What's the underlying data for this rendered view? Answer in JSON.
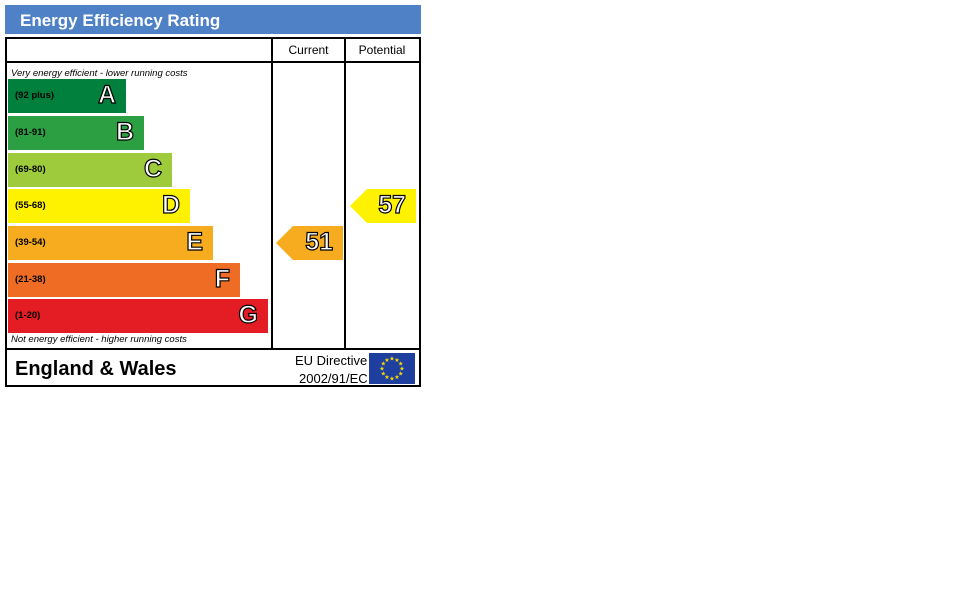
{
  "title": "Energy Efficiency Rating",
  "columns": {
    "current": "Current",
    "potential": "Potential"
  },
  "top_note": "Very energy efficient - lower running costs",
  "bottom_note": "Not energy efficient - higher running costs",
  "footer": {
    "country": "England & Wales",
    "directive_line1": "EU Directive",
    "directive_line2": "2002/91/EC",
    "flag_icon": "eu-flag-icon"
  },
  "chart_data": {
    "type": "bar",
    "title": "Energy Efficiency Rating",
    "bands": [
      {
        "letter": "A",
        "range": "(92 plus)",
        "color": "#007f3d"
      },
      {
        "letter": "B",
        "range": "(81-91)",
        "color": "#2c9f42"
      },
      {
        "letter": "C",
        "range": "(69-80)",
        "color": "#9dcb3b"
      },
      {
        "letter": "D",
        "range": "(55-68)",
        "color": "#fff200"
      },
      {
        "letter": "E",
        "range": "(39-54)",
        "color": "#f7ac1f"
      },
      {
        "letter": "F",
        "range": "(21-38)",
        "color": "#ee6c23"
      },
      {
        "letter": "G",
        "range": "(1-20)",
        "color": "#e31d23"
      }
    ],
    "current": {
      "value": "51",
      "band": "E",
      "color": "#f7ac1f"
    },
    "potential": {
      "value": "57",
      "band": "D",
      "color": "#fff200"
    }
  }
}
